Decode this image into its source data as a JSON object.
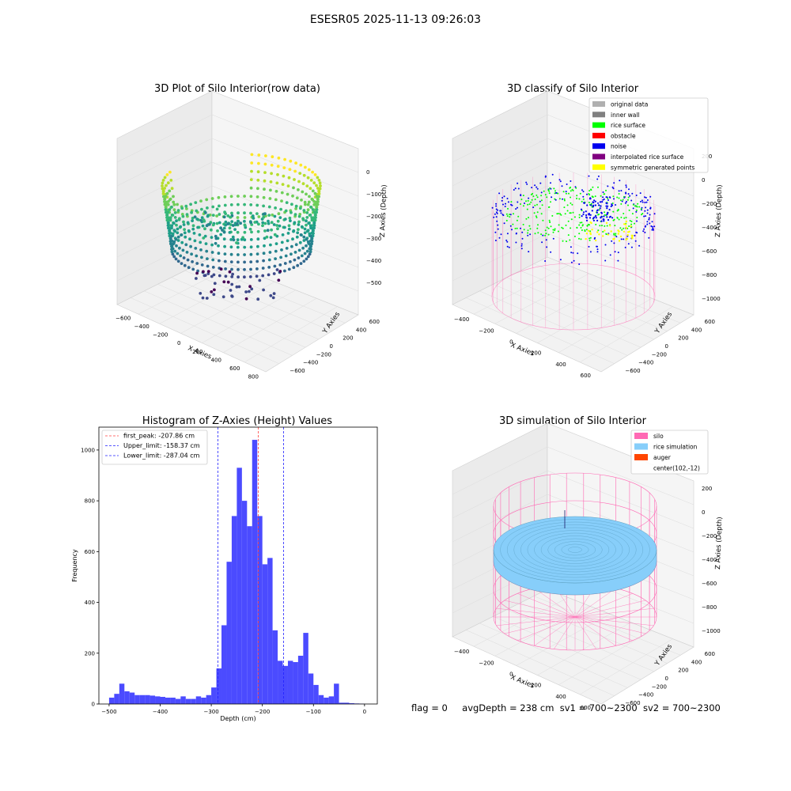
{
  "figure": {
    "suptitle": "ESESR05 2025-11-13 09:26:03",
    "footer": {
      "flag": "flag = 0",
      "avg_depth": "avgDepth = 238 cm",
      "sv1": "sv1 = 700~2300",
      "sv2": "sv2 = 700~2300"
    }
  },
  "colors": {
    "histogram_bar": "#4b4bff",
    "first_peak": "#ff4040",
    "limits": "#2020ff",
    "silo": "#ff69b4",
    "rice_simulation": "#87cefa",
    "auger": "#ff4500",
    "classify": {
      "original_data": "#b0b0b0",
      "inner_wall": "#808080",
      "rice_surface": "#00ff00",
      "obstacle": "#ff0000",
      "noise": "#0000ee",
      "interpolated_rice_surface": "#800080",
      "symmetric_generated_points": "#ffff00"
    }
  },
  "chart_data": [
    {
      "type": "scatter",
      "plot_kind": "3d-scatter",
      "title": "3D Plot of Silo Interior(row data)",
      "xlabel": "X Axies",
      "ylabel": "Y Axies",
      "zlabel": "Z Axies (Depth)",
      "x_ticks": [
        "−600",
        "−400",
        "−200",
        "0",
        "200",
        "400",
        "600",
        "800"
      ],
      "y_ticks": [
        "−600",
        "−400",
        "−200",
        "0",
        "200",
        "400",
        "600"
      ],
      "z_ticks": [
        "−500",
        "−400",
        "−300",
        "−200",
        "−100",
        "0"
      ],
      "xlim": [
        -600,
        800
      ],
      "ylim": [
        -650,
        650
      ],
      "zlim": [
        -520,
        10
      ],
      "colormap": "viridis"
    },
    {
      "type": "scatter",
      "plot_kind": "3d-scatter",
      "title": "3D classify of Silo Interior",
      "xlabel": "X Axies",
      "ylabel": "Y Axies",
      "zlabel": "Z Axies (Depth)",
      "x_ticks": [
        "−400",
        "−200",
        "0",
        "200",
        "400",
        "600"
      ],
      "y_ticks": [
        "−600",
        "−400",
        "−200",
        "0",
        "200",
        "400",
        "600"
      ],
      "z_ticks": [
        "−1000",
        "−800",
        "−600",
        "−400",
        "−200",
        "0",
        "200"
      ],
      "legend": [
        "original data",
        "inner wall",
        "rice surface",
        "obstacle",
        "noise",
        "interpolated rice surface",
        "symmetric generated points"
      ],
      "legend_position": "upper-right"
    },
    {
      "type": "bar",
      "plot_kind": "histogram",
      "title": "Histogram of Z-Axies (Height) Values",
      "xlabel": "Depth (cm)",
      "ylabel": "Frequency",
      "xlim": [
        -520,
        25
      ],
      "ylim": [
        0,
        1090
      ],
      "x_ticks": [
        -500,
        -400,
        -300,
        -200,
        -100,
        0
      ],
      "y_ticks": [
        0,
        200,
        400,
        600,
        800,
        1000
      ],
      "bin_start": -500,
      "bin_width": 10,
      "values": [
        25,
        40,
        80,
        50,
        45,
        35,
        35,
        35,
        33,
        30,
        28,
        25,
        25,
        20,
        30,
        20,
        20,
        30,
        25,
        35,
        65,
        140,
        310,
        560,
        740,
        930,
        800,
        700,
        1040,
        740,
        550,
        575,
        290,
        170,
        150,
        170,
        165,
        190,
        280,
        120,
        75,
        35,
        25,
        30,
        80,
        5,
        5,
        3,
        2,
        1
      ],
      "vlines": [
        {
          "label": "first_peak: -207.86 cm",
          "x": -207.86,
          "color_key": "first_peak"
        },
        {
          "label": "Upper_limit: -158.37 cm",
          "x": -158.37,
          "color_key": "limits"
        },
        {
          "label": "Lower_limit: -287.04 cm",
          "x": -287.04,
          "color_key": "limits"
        }
      ],
      "legend_position": "upper-left",
      "tick_labels_x": [
        "−500",
        "−400",
        "−300",
        "−200",
        "−100",
        "0"
      ],
      "tick_labels_y": [
        "0",
        "200",
        "400",
        "600",
        "800",
        "1000"
      ]
    },
    {
      "type": "scatter",
      "plot_kind": "3d-surface",
      "title": "3D simulation of Silo Interior",
      "xlabel": "X Axies",
      "ylabel": "Y Axies",
      "zlabel": "Z Axies (Depth)",
      "x_ticks": [
        "−400",
        "−200",
        "0",
        "200",
        "400",
        "600"
      ],
      "y_ticks": [
        "−600",
        "−400",
        "−200",
        "0",
        "200",
        "400",
        "600"
      ],
      "z_ticks": [
        "−1000",
        "−800",
        "−600",
        "−400",
        "−200",
        "0",
        "200"
      ],
      "legend": [
        "silo",
        "rice simulation",
        "auger",
        "center(102,-12)"
      ],
      "legend_position": "upper-right"
    }
  ]
}
